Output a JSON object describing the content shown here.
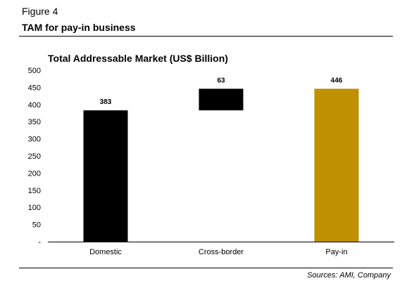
{
  "figure": {
    "label": "Figure 4",
    "title": "TAM for pay-in business",
    "source": "Sources: AMI, Company"
  },
  "chart_data": {
    "type": "bar",
    "subtype": "waterfall",
    "title": "Total Addressable Market (US$ Billion)",
    "categories": [
      "Domestic",
      "Cross-border",
      "Pay-in"
    ],
    "values": [
      383,
      63,
      446
    ],
    "bar_ranges": [
      [
        0,
        383
      ],
      [
        383,
        446
      ],
      [
        0,
        446
      ]
    ],
    "data_labels": [
      "383",
      "63",
      "446"
    ],
    "colors": [
      "#000000",
      "#000000",
      "#bf9000"
    ],
    "ylim": [
      0,
      500
    ],
    "yticks": [
      0,
      50,
      100,
      150,
      200,
      250,
      300,
      350,
      400,
      450,
      500
    ],
    "ytick_labels": [
      "-",
      "50",
      "100",
      "150",
      "200",
      "250",
      "300",
      "350",
      "400",
      "450",
      "500"
    ],
    "xlabel": "",
    "ylabel": "",
    "grid": false,
    "legend": "none"
  }
}
